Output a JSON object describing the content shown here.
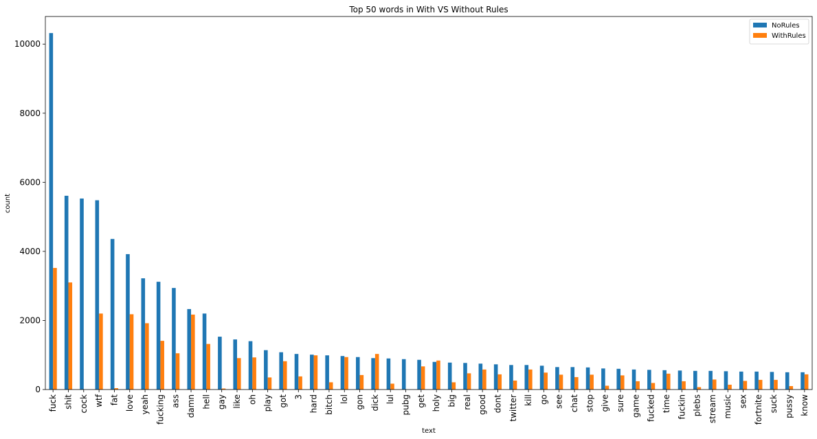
{
  "chart_data": {
    "type": "bar",
    "title": "Top 50 words in With VS Without Rules",
    "xlabel": "text",
    "ylabel": "count",
    "ylim": [
      0,
      10800
    ],
    "yticks": [
      0,
      2000,
      4000,
      6000,
      8000,
      10000
    ],
    "legend_position": "top-right",
    "grid": false,
    "categories": [
      "fuck",
      "shit",
      "cock",
      "wtf",
      "fat",
      "love",
      "yeah",
      "fucking",
      "ass",
      "damn",
      "hell",
      "gay",
      "like",
      "oh",
      "play",
      "got",
      "3",
      "hard",
      "bitch",
      "lol",
      "gon",
      "dick",
      "lul",
      "pubg",
      "get",
      "holy",
      "big",
      "real",
      "good",
      "dont",
      "twitter",
      "kill",
      "go",
      "see",
      "chat",
      "stop",
      "give",
      "sure",
      "game",
      "fucked",
      "time",
      "fuckin",
      "plebs",
      "stream",
      "music",
      "sex",
      "fortnite",
      "suck",
      "pussy",
      "know"
    ],
    "series": [
      {
        "name": "NoRules",
        "color": "#1f77b4",
        "values": [
          10320,
          5610,
          5530,
          5480,
          4360,
          3920,
          3220,
          3120,
          2940,
          2330,
          2200,
          1530,
          1450,
          1400,
          1140,
          1080,
          1030,
          1010,
          990,
          970,
          940,
          910,
          900,
          880,
          860,
          800,
          780,
          770,
          750,
          730,
          710,
          710,
          690,
          650,
          650,
          640,
          610,
          600,
          580,
          570,
          560,
          550,
          540,
          540,
          530,
          520,
          520,
          510,
          500,
          500
        ]
      },
      {
        "name": "WithRules",
        "color": "#ff7f0e",
        "values": [
          3520,
          3100,
          0,
          2200,
          40,
          2180,
          1920,
          1410,
          1050,
          2170,
          1320,
          30,
          910,
          930,
          350,
          820,
          380,
          990,
          210,
          940,
          420,
          1030,
          170,
          0,
          670,
          840,
          210,
          470,
          580,
          440,
          260,
          580,
          490,
          430,
          360,
          430,
          110,
          410,
          240,
          190,
          460,
          240,
          70,
          290,
          140,
          250,
          280,
          280,
          100,
          440
        ]
      }
    ]
  }
}
